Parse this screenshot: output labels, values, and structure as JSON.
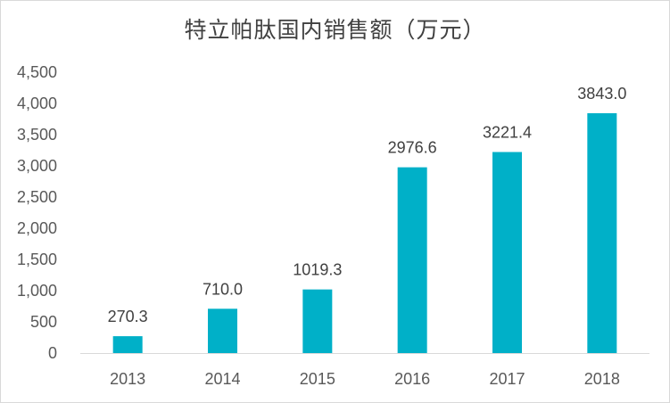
{
  "chart_data": {
    "type": "bar",
    "title": "特立帕肽国内销售额（万元）",
    "xlabel": "",
    "ylabel": "",
    "categories": [
      "2013",
      "2014",
      "2015",
      "2016",
      "2017",
      "2018"
    ],
    "values": [
      270.3,
      710.0,
      1019.3,
      2976.6,
      3221.4,
      3843.0
    ],
    "value_labels": [
      "270.3",
      "710.0",
      "1019.3",
      "2976.6",
      "3221.4",
      "3843.0"
    ],
    "ylim": [
      0,
      4500
    ],
    "y_ticks": [
      0,
      500,
      1000,
      1500,
      2000,
      2500,
      3000,
      3500,
      4000,
      4500
    ],
    "y_tick_labels": [
      "0",
      "500",
      "1,000",
      "1,500",
      "2,000",
      "2,500",
      "3,000",
      "3,500",
      "4,000",
      "4,500"
    ],
    "grid": false,
    "legend": "none",
    "bar_color": "#00b0c8"
  }
}
